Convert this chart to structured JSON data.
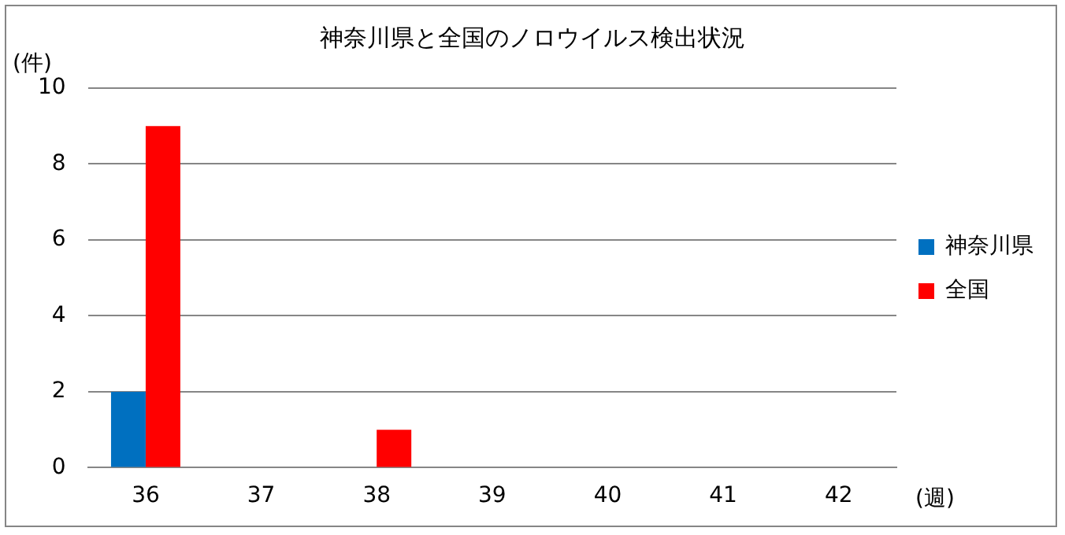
{
  "chart_data": {
    "type": "bar",
    "title": "神奈川県と全国のノロウイルス検出状況",
    "ylabel": "(件)",
    "xlabel": "(週)",
    "categories": [
      "36",
      "37",
      "38",
      "39",
      "40",
      "41",
      "42"
    ],
    "series": [
      {
        "name": "神奈川県",
        "color": "#0070c0",
        "values": [
          2,
          0,
          0,
          0,
          0,
          0,
          0
        ]
      },
      {
        "name": "全国",
        "color": "#ff0000",
        "values": [
          9,
          0,
          1,
          0,
          0,
          0,
          0
        ]
      }
    ],
    "ylim": [
      0,
      10
    ],
    "yticks": [
      0,
      2,
      4,
      6,
      8,
      10
    ],
    "grid": "y",
    "legend": "right"
  }
}
